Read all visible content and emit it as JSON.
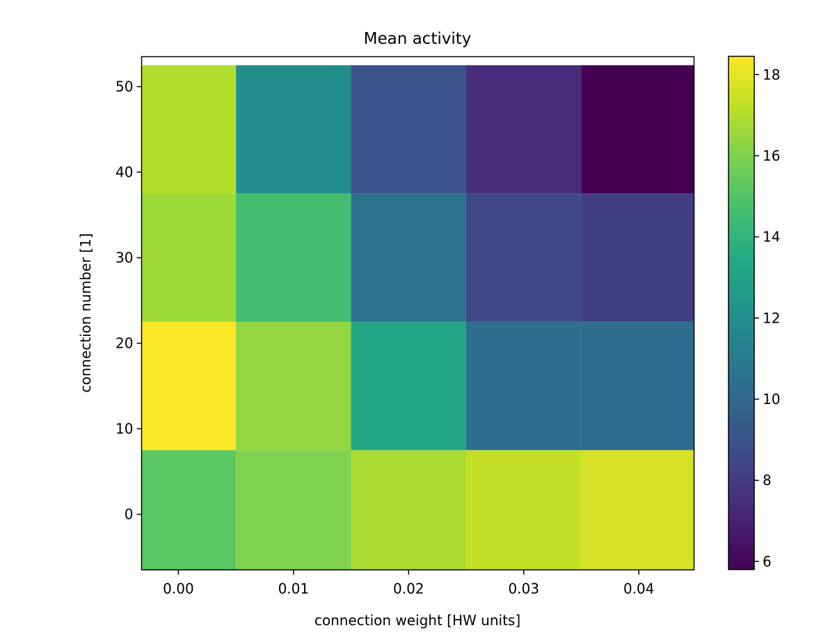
{
  "chart_data": {
    "type": "heatmap",
    "title": "Mean activity",
    "xlabel": "connection weight [HW units]",
    "ylabel": "connection number [1]",
    "x": [
      0.0,
      0.01,
      0.02,
      0.03,
      0.04
    ],
    "x_tick_labels": [
      "0.00",
      "0.01",
      "0.02",
      "0.03",
      "0.04"
    ],
    "xlim": [
      -0.0032,
      0.0448
    ],
    "y": [
      0,
      15,
      30,
      45
    ],
    "y_ticks": [
      0,
      10,
      20,
      30,
      40,
      50
    ],
    "y_tick_labels": [
      "0",
      "10",
      "20",
      "30",
      "40",
      "50"
    ],
    "ylim": [
      -6.5,
      53.5
    ],
    "values": [
      [
        15.2,
        16.0,
        16.8,
        17.3,
        17.7
      ],
      [
        18.4,
        16.4,
        13.3,
        10.3,
        10.3
      ],
      [
        16.6,
        14.6,
        10.5,
        8.5,
        8.1
      ],
      [
        17.0,
        11.9,
        9.0,
        7.4,
        5.8
      ]
    ],
    "colormap": "viridis",
    "colorbar": {
      "range": [
        5.8,
        18.45
      ],
      "ticks": [
        6,
        8,
        10,
        12,
        14,
        16,
        18
      ],
      "tick_labels": [
        "6",
        "8",
        "10",
        "12",
        "14",
        "16",
        "18"
      ]
    }
  }
}
